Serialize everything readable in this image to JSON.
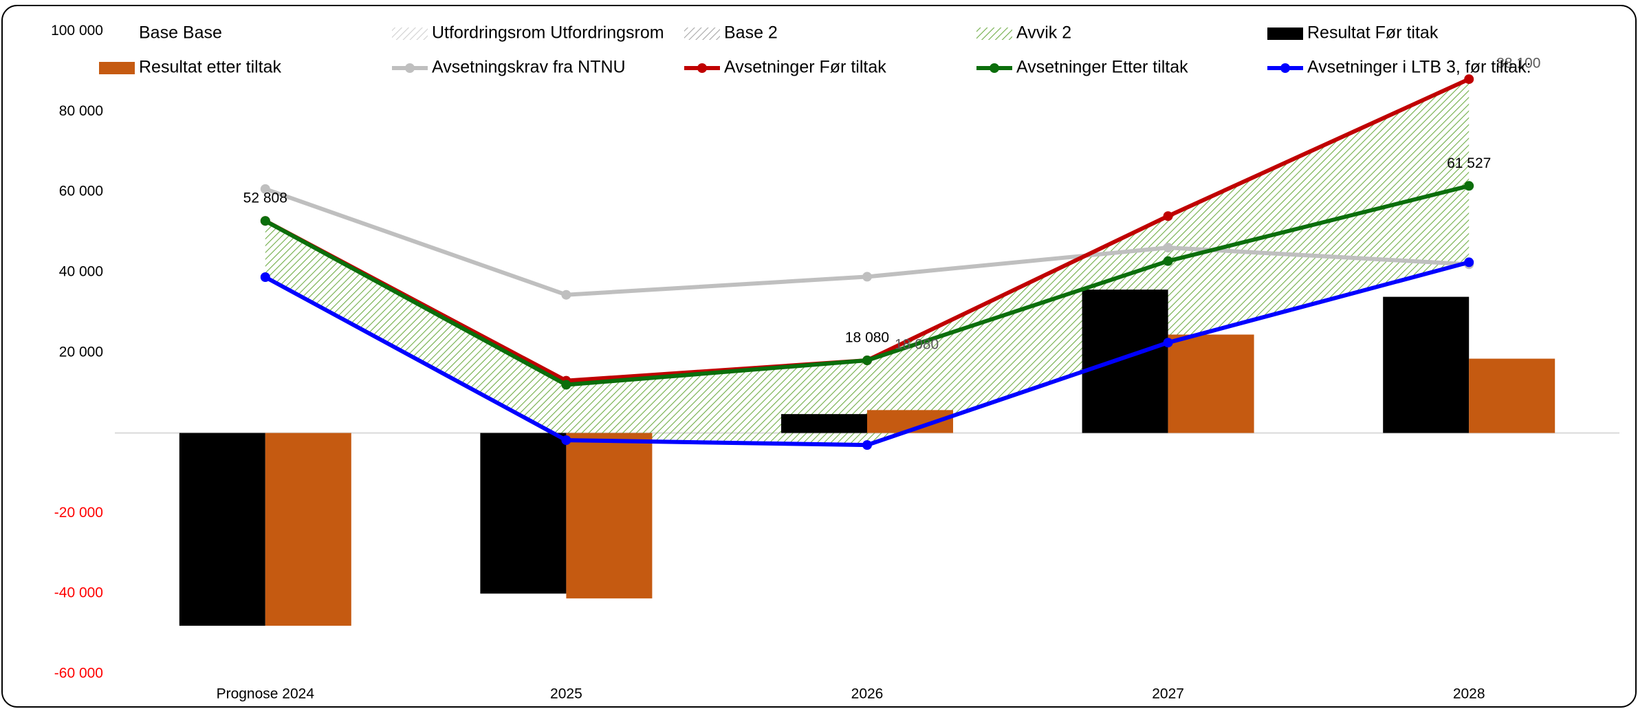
{
  "chart_data": {
    "type": "combo",
    "categories": [
      "Prognose 2024",
      "2025",
      "2026",
      "2027",
      "2028"
    ],
    "ylim": [
      -60000,
      100000
    ],
    "yticks": [
      {
        "value": -60000,
        "label": "-60 000"
      },
      {
        "value": -40000,
        "label": "-40 000"
      },
      {
        "value": -20000,
        "label": "-20 000"
      },
      {
        "value": 20000,
        "label": "20 000"
      },
      {
        "value": 40000,
        "label": "40 000"
      },
      {
        "value": 60000,
        "label": "60 000"
      },
      {
        "value": 80000,
        "label": "80 000"
      },
      {
        "value": 100000,
        "label": "100 000"
      }
    ],
    "negative_tick_color": "#ff0000",
    "grid": false,
    "legend": "top",
    "series": [
      {
        "name": "Base Base",
        "kind": "area",
        "color": "none",
        "values": [
          null,
          null,
          null,
          null,
          null
        ]
      },
      {
        "name": "Utfordringsrom Utfordringsrom",
        "kind": "area",
        "color": "#d0d0d0",
        "hatch": true,
        "values": [
          null,
          null,
          null,
          null,
          null
        ]
      },
      {
        "name": "Base 2",
        "kind": "area",
        "color": "#a6a6a6",
        "hatch": true,
        "visible": false,
        "values": [
          38800,
          -1800,
          -3000,
          22500,
          42500
        ]
      },
      {
        "name": "Avvik 2",
        "kind": "area",
        "color": "#70ad47",
        "hatch": true,
        "stack_on": 2,
        "values": [
          14000,
          14800,
          21100,
          31500,
          45600
        ]
      },
      {
        "name": "Resultat Før titak",
        "kind": "bar",
        "color": "#000000",
        "values": [
          -48000,
          -40000,
          4700,
          35700,
          33900
        ]
      },
      {
        "name": "Resultat etter tiltak",
        "kind": "bar",
        "color": "#c55a11",
        "values": [
          -48000,
          -41200,
          5700,
          24500,
          18500
        ]
      },
      {
        "name": "Avsetningskrav fra NTNU",
        "kind": "line",
        "color": "#bfbfbf",
        "values": [
          60750,
          34400,
          38900,
          46150,
          42000
        ]
      },
      {
        "name": "Avsetninger Før tiltak",
        "kind": "line",
        "color": "#c00000",
        "label_color": "#595959",
        "values": [
          52808,
          13000,
          18080,
          54000,
          88100
        ],
        "value_labels": [
          null,
          null,
          "18 080",
          null,
          "88 100"
        ]
      },
      {
        "name": "Avsetninger Etter tiltak",
        "kind": "line",
        "color": "#0b6e0b",
        "label_color": "#000000",
        "values": [
          52808,
          12000,
          18080,
          42800,
          61527
        ],
        "value_labels": [
          "52 808",
          null,
          "18 080",
          null,
          "61 527"
        ]
      },
      {
        "name": "Avsetninger i LTB 3, før tiltak:",
        "kind": "line",
        "color": "#0000ff",
        "values": [
          38800,
          -1800,
          -3000,
          22500,
          42500
        ]
      }
    ]
  }
}
